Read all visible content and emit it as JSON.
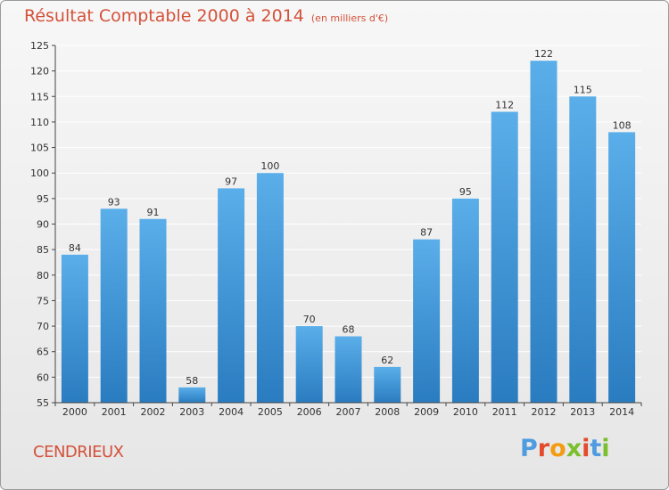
{
  "header": {
    "title": "Résultat Comptable 2000 à 2014",
    "subtitle": "(en milliers d'€)"
  },
  "footer": {
    "town": "CENDRIEUX",
    "logo": "Proxiti"
  },
  "colors": {
    "title": "#d4513a",
    "bar_top": "#5aaee9",
    "bar_bottom": "#2a7cc0",
    "grid": "#ffffff",
    "axis": "#444444",
    "logo_letters": [
      "#4f9be0",
      "#e24b2b",
      "#f39c12",
      "#7bbf2c",
      "#e24b2b",
      "#4f9be0",
      "#7bbf2c"
    ]
  },
  "chart_data": {
    "type": "bar",
    "title": "Résultat Comptable 2000 à 2014",
    "subtitle": "(en milliers d'€)",
    "categories": [
      "2000",
      "2001",
      "2002",
      "2003",
      "2004",
      "2005",
      "2006",
      "2007",
      "2008",
      "2009",
      "2010",
      "2011",
      "2012",
      "2013",
      "2014"
    ],
    "values": [
      84,
      93,
      91,
      58,
      97,
      100,
      70,
      68,
      62,
      87,
      95,
      112,
      122,
      115,
      108
    ],
    "ylim": [
      55,
      125
    ],
    "yticks": [
      55,
      60,
      65,
      70,
      75,
      80,
      85,
      90,
      95,
      100,
      105,
      110,
      115,
      120,
      125
    ],
    "grid": true,
    "xlabel": "",
    "ylabel": ""
  }
}
